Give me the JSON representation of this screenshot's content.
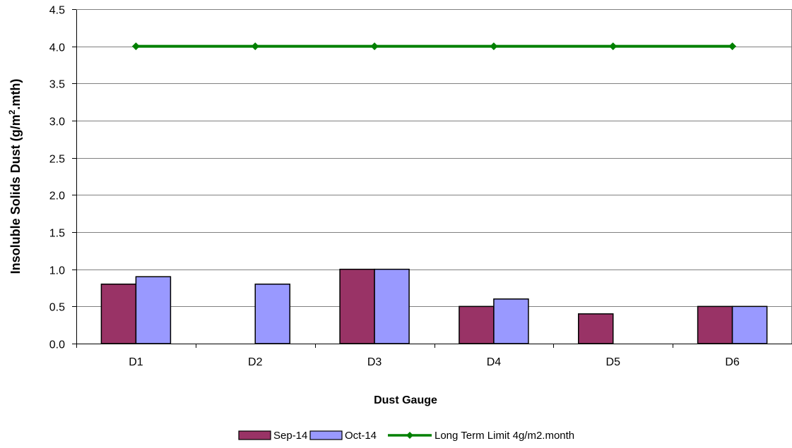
{
  "chart_data": {
    "type": "bar",
    "title": "",
    "xlabel": "Dust Gauge",
    "ylabel": "Insoluble Solids Dust (g/m²",
    "ylabel_superscript": "2",
    "ylabel_suffix": ".mth)",
    "categories": [
      "D1",
      "D2",
      "D3",
      "D4",
      "D5",
      "D6"
    ],
    "ylim": [
      0,
      4.5
    ],
    "yticks": [
      "0.0",
      "0.5",
      "1.0",
      "1.5",
      "2.0",
      "2.5",
      "3.0",
      "3.5",
      "4.0",
      "4.5"
    ],
    "grid": true,
    "legend_position": "bottom",
    "series": [
      {
        "name": "Sep-14",
        "kind": "bar",
        "color": "#993366",
        "values": [
          0.8,
          null,
          1.0,
          0.5,
          0.4,
          0.5
        ]
      },
      {
        "name": "Oct-14",
        "kind": "bar",
        "color": "#9999ff",
        "values": [
          0.9,
          0.8,
          1.0,
          0.6,
          null,
          0.5
        ]
      },
      {
        "name": "Long Term Limit 4g/m2.month",
        "kind": "line",
        "color": "#008000",
        "marker": "diamond",
        "values": [
          4,
          4,
          4,
          4,
          4,
          4
        ]
      }
    ]
  }
}
